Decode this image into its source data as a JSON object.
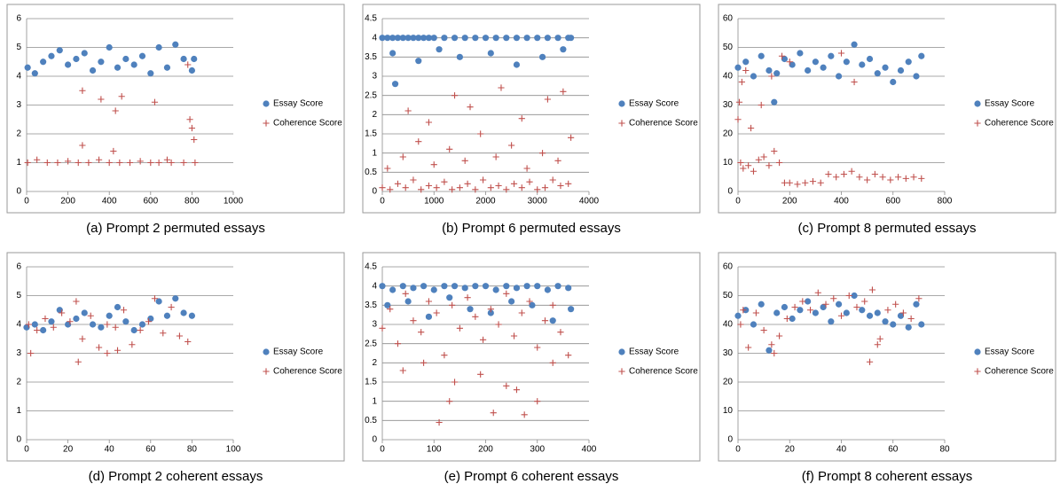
{
  "chart_data": [
    {
      "type": "scatter",
      "title": "(a) Prompt 2 permuted essays",
      "xlim": [
        0,
        1000
      ],
      "xticks": [
        0,
        200,
        400,
        600,
        800,
        1000
      ],
      "ylim": [
        0,
        6
      ],
      "yticks": [
        0,
        1,
        2,
        3,
        4,
        5,
        6
      ],
      "grid": true,
      "legend": "right",
      "series": [
        {
          "name": "Essay Score",
          "color": "#4f81bd",
          "marker": "circle",
          "x": [
            5,
            40,
            80,
            120,
            160,
            200,
            240,
            280,
            320,
            360,
            400,
            440,
            480,
            520,
            560,
            600,
            640,
            680,
            720,
            760,
            800,
            810
          ],
          "values": [
            4.3,
            4.1,
            4.5,
            4.7,
            4.9,
            4.4,
            4.6,
            4.8,
            4.2,
            4.5,
            5.0,
            4.3,
            4.6,
            4.4,
            4.7,
            4.1,
            5.0,
            4.3,
            5.1,
            4.6,
            4.2,
            4.6
          ]
        },
        {
          "name": "Coherence Score",
          "color": "#c0504d",
          "marker": "plus",
          "x": [
            5,
            50,
            100,
            150,
            200,
            250,
            270,
            300,
            350,
            400,
            420,
            450,
            500,
            550,
            600,
            640,
            680,
            700,
            760,
            790,
            800,
            810,
            815,
            270,
            360,
            430,
            460,
            620,
            780
          ],
          "values": [
            1.0,
            1.1,
            1.0,
            1.0,
            1.05,
            1.0,
            1.6,
            1.0,
            1.1,
            1.0,
            1.4,
            1.0,
            1.0,
            1.05,
            1.0,
            1.0,
            1.1,
            1.0,
            1.0,
            2.5,
            2.2,
            1.8,
            1.0,
            3.5,
            3.2,
            2.8,
            3.3,
            3.1,
            4.4
          ]
        }
      ]
    },
    {
      "type": "scatter",
      "title": "(b) Prompt 6 permuted essays",
      "xlim": [
        0,
        4000
      ],
      "xticks": [
        0,
        1000,
        2000,
        3000,
        4000
      ],
      "ylim": [
        0,
        4.5
      ],
      "yticks": [
        0,
        0.5,
        1,
        1.5,
        2,
        2.5,
        3,
        3.5,
        4,
        4.5
      ],
      "grid": true,
      "legend": "right",
      "series": [
        {
          "name": "Essay Score",
          "color": "#4f81bd",
          "marker": "circle",
          "x": [
            0,
            100,
            200,
            300,
            400,
            500,
            600,
            700,
            800,
            900,
            1000,
            1200,
            1400,
            1600,
            1800,
            2000,
            2200,
            2400,
            2600,
            2800,
            3000,
            3200,
            3400,
            3600,
            3650,
            200,
            700,
            1100,
            1500,
            2100,
            2600,
            3100,
            3500,
            250
          ],
          "values": [
            4,
            4,
            4,
            4,
            4,
            4,
            4,
            4,
            4,
            4,
            4,
            4,
            4,
            4,
            4,
            4,
            4,
            4,
            4,
            4,
            4,
            4,
            4,
            4,
            4,
            3.6,
            3.4,
            3.7,
            3.5,
            3.6,
            3.3,
            3.5,
            3.7,
            2.8
          ]
        },
        {
          "name": "Coherence Score",
          "color": "#c0504d",
          "marker": "plus",
          "x": [
            0,
            150,
            300,
            450,
            600,
            750,
            900,
            1050,
            1200,
            1350,
            1500,
            1650,
            1800,
            1950,
            2100,
            2250,
            2400,
            2550,
            2700,
            2850,
            3000,
            3150,
            3300,
            3450,
            3600,
            100,
            400,
            700,
            1000,
            1300,
            1600,
            1900,
            2200,
            2500,
            2800,
            3100,
            3400,
            3650,
            500,
            900,
            1400,
            1700,
            2300,
            2700,
            3200,
            3500
          ],
          "values": [
            0.1,
            0.05,
            0.2,
            0.1,
            0.3,
            0.05,
            0.15,
            0.1,
            0.25,
            0.05,
            0.1,
            0.2,
            0.05,
            0.3,
            0.1,
            0.15,
            0.05,
            0.2,
            0.1,
            0.25,
            0.05,
            0.1,
            0.3,
            0.15,
            0.2,
            0.6,
            0.9,
            1.3,
            0.7,
            1.1,
            0.8,
            1.5,
            0.9,
            1.2,
            0.6,
            1.0,
            0.8,
            1.4,
            2.1,
            1.8,
            2.5,
            2.2,
            2.7,
            1.9,
            2.4,
            2.6
          ]
        }
      ]
    },
    {
      "type": "scatter",
      "title": "(c) Prompt 8 permuted essays",
      "xlim": [
        0,
        800
      ],
      "xticks": [
        0,
        200,
        400,
        600,
        800
      ],
      "ylim": [
        0,
        60
      ],
      "yticks": [
        0,
        10,
        20,
        30,
        40,
        50,
        60
      ],
      "grid": true,
      "legend": "right",
      "series": [
        {
          "name": "Essay Score",
          "color": "#4f81bd",
          "marker": "circle",
          "x": [
            0,
            30,
            60,
            90,
            120,
            150,
            180,
            210,
            240,
            270,
            300,
            330,
            360,
            390,
            420,
            450,
            480,
            510,
            540,
            570,
            600,
            630,
            660,
            690,
            710,
            140
          ],
          "values": [
            43,
            45,
            40,
            47,
            42,
            41,
            46,
            44,
            48,
            42,
            45,
            43,
            47,
            40,
            45,
            51,
            44,
            46,
            41,
            43,
            38,
            42,
            45,
            40,
            47,
            31
          ]
        },
        {
          "name": "Coherence Score",
          "color": "#c0504d",
          "marker": "plus",
          "x": [
            0,
            10,
            20,
            40,
            60,
            80,
            100,
            120,
            140,
            160,
            180,
            200,
            230,
            260,
            290,
            320,
            350,
            380,
            410,
            440,
            470,
            500,
            530,
            560,
            590,
            620,
            650,
            680,
            710,
            5,
            15,
            30,
            50,
            90,
            130,
            170,
            200,
            400,
            450
          ],
          "values": [
            25,
            10,
            8,
            9,
            7,
            11,
            12,
            9,
            14,
            10,
            3,
            3,
            2.5,
            3,
            3.5,
            3,
            6,
            5,
            6,
            7,
            5,
            4,
            6,
            5,
            4,
            5,
            4.5,
            5,
            4.5,
            31,
            38,
            42,
            22,
            30,
            40,
            47,
            45,
            48,
            38
          ]
        }
      ]
    },
    {
      "type": "scatter",
      "title": "(d) Prompt 2 coherent essays",
      "xlim": [
        0,
        100
      ],
      "xticks": [
        0,
        20,
        40,
        60,
        80,
        100
      ],
      "ylim": [
        0,
        6
      ],
      "yticks": [
        0,
        1,
        2,
        3,
        4,
        5,
        6
      ],
      "grid": true,
      "legend": "right",
      "series": [
        {
          "name": "Essay Score",
          "color": "#4f81bd",
          "marker": "circle",
          "x": [
            0,
            4,
            8,
            12,
            16,
            20,
            24,
            28,
            32,
            36,
            40,
            44,
            48,
            52,
            56,
            60,
            64,
            68,
            72,
            76,
            80
          ],
          "values": [
            3.9,
            4.0,
            3.8,
            4.1,
            4.5,
            4.0,
            4.2,
            4.4,
            4.0,
            3.9,
            4.3,
            4.6,
            4.1,
            3.8,
            4.0,
            4.2,
            4.8,
            4.3,
            4.9,
            4.4,
            4.3
          ]
        },
        {
          "name": "Coherence Score",
          "color": "#c0504d",
          "marker": "plus",
          "x": [
            1,
            5,
            9,
            13,
            17,
            21,
            24,
            27,
            31,
            35,
            39,
            43,
            47,
            51,
            55,
            59,
            62,
            66,
            70,
            74,
            78,
            2,
            25,
            39,
            44
          ],
          "values": [
            4.0,
            3.8,
            4.2,
            3.9,
            4.4,
            4.1,
            4.8,
            3.5,
            4.3,
            3.2,
            4.0,
            3.9,
            4.5,
            3.3,
            3.8,
            4.1,
            4.9,
            3.7,
            4.6,
            3.6,
            3.4,
            3.0,
            2.7,
            3.0,
            3.1
          ]
        }
      ]
    },
    {
      "type": "scatter",
      "title": "(e) Prompt 6 coherent essays",
      "xlim": [
        0,
        400
      ],
      "xticks": [
        0,
        100,
        200,
        300,
        400
      ],
      "ylim": [
        0,
        4.5
      ],
      "yticks": [
        0,
        0.5,
        1,
        1.5,
        2,
        2.5,
        3,
        3.5,
        4,
        4.5
      ],
      "grid": true,
      "legend": "right",
      "series": [
        {
          "name": "Essay Score",
          "color": "#4f81bd",
          "marker": "circle",
          "x": [
            0,
            20,
            40,
            60,
            80,
            100,
            120,
            140,
            160,
            180,
            200,
            220,
            240,
            260,
            280,
            300,
            320,
            340,
            360,
            10,
            50,
            90,
            130,
            170,
            210,
            250,
            290,
            330,
            365
          ],
          "values": [
            4,
            3.9,
            4,
            3.95,
            4,
            3.9,
            4,
            4,
            3.95,
            4,
            4,
            3.9,
            4,
            3.95,
            4,
            4,
            3.9,
            4,
            3.95,
            3.5,
            3.6,
            3.2,
            3.7,
            3.4,
            3.3,
            3.6,
            3.5,
            3.1,
            3.4
          ]
        },
        {
          "name": "Coherence Score",
          "color": "#c0504d",
          "marker": "plus",
          "x": [
            0,
            15,
            30,
            45,
            60,
            75,
            90,
            105,
            120,
            135,
            150,
            165,
            180,
            195,
            210,
            225,
            240,
            255,
            270,
            285,
            300,
            315,
            330,
            345,
            360,
            110,
            130,
            215,
            260,
            275,
            300,
            40,
            80,
            140,
            190,
            240,
            330
          ],
          "values": [
            2.9,
            3.4,
            2.5,
            3.8,
            3.1,
            2.8,
            3.6,
            3.3,
            2.2,
            3.5,
            2.9,
            3.7,
            3.2,
            2.6,
            3.4,
            3.0,
            3.8,
            2.7,
            3.3,
            3.6,
            2.4,
            3.1,
            3.5,
            2.8,
            2.2,
            0.45,
            1.0,
            0.7,
            1.3,
            0.65,
            1.0,
            1.8,
            2.0,
            1.5,
            1.7,
            1.4,
            2.0
          ]
        }
      ]
    },
    {
      "type": "scatter",
      "title": "(f) Prompt 8 coherent essays",
      "xlim": [
        0,
        80
      ],
      "xticks": [
        0,
        20,
        40,
        60,
        80
      ],
      "ylim": [
        0,
        60
      ],
      "yticks": [
        0,
        10,
        20,
        30,
        40,
        50,
        60
      ],
      "grid": true,
      "legend": "right",
      "series": [
        {
          "name": "Essay Score",
          "color": "#4f81bd",
          "marker": "circle",
          "x": [
            0,
            3,
            6,
            9,
            12,
            15,
            18,
            21,
            24,
            27,
            30,
            33,
            36,
            39,
            42,
            45,
            48,
            51,
            54,
            57,
            60,
            63,
            66,
            69,
            71
          ],
          "values": [
            43,
            45,
            40,
            47,
            31,
            44,
            46,
            42,
            45,
            48,
            44,
            46,
            41,
            47,
            44,
            50,
            45,
            43,
            44,
            41,
            40,
            43,
            39,
            47,
            40
          ]
        },
        {
          "name": "Coherence Score",
          "color": "#c0504d",
          "marker": "plus",
          "x": [
            1,
            4,
            7,
            10,
            13,
            16,
            19,
            22,
            25,
            28,
            31,
            34,
            37,
            40,
            43,
            46,
            49,
            52,
            55,
            58,
            61,
            64,
            67,
            70,
            2,
            14,
            51,
            54
          ],
          "values": [
            40,
            32,
            44,
            38,
            33,
            36,
            42,
            46,
            48,
            45,
            51,
            47,
            49,
            43,
            50,
            46,
            48,
            52,
            35,
            45,
            47,
            44,
            42,
            49,
            45,
            30,
            27,
            33
          ]
        }
      ]
    }
  ]
}
